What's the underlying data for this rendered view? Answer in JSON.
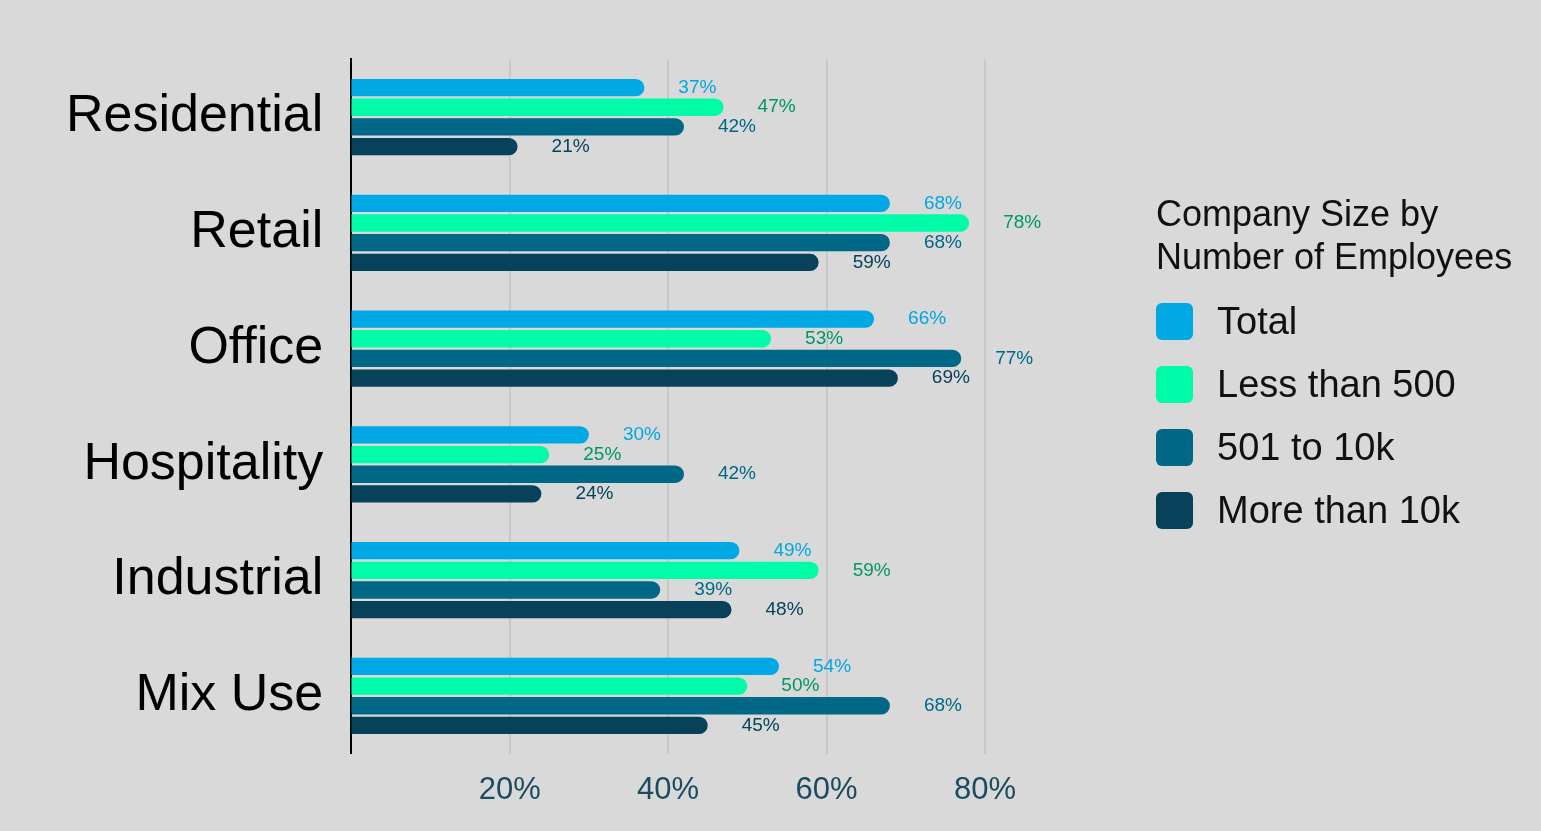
{
  "chart_data": {
    "type": "bar",
    "orientation": "horizontal",
    "legend_title": "Company Size by Number of Employees",
    "legend": "right",
    "grid": "x",
    "categories": [
      "Residential",
      "Retail",
      "Office",
      "Hospitality",
      "Industrial",
      "Mix Use"
    ],
    "xlim": [
      0,
      80
    ],
    "xticks": [
      {
        "value": 20,
        "label": "20%"
      },
      {
        "value": 40,
        "label": "40%"
      },
      {
        "value": 60,
        "label": "60%"
      },
      {
        "value": 80,
        "label": "80%"
      }
    ],
    "series": [
      {
        "name": "Total",
        "color": "#00a8e4",
        "values": [
          37,
          68,
          66,
          30,
          49,
          54
        ],
        "value_labels": [
          "37%",
          "68%",
          "66%",
          "30%",
          "49%",
          "54%"
        ]
      },
      {
        "name": "Less than 500",
        "color": "#00fca8",
        "values": [
          47,
          78,
          53,
          25,
          59,
          50
        ],
        "value_labels": [
          "47%",
          "78%",
          "53%",
          "25%",
          "59%",
          "50%"
        ]
      },
      {
        "name": "501 to 10k",
        "color": "#006886",
        "values": [
          42,
          68,
          77,
          42,
          39,
          68
        ],
        "value_labels": [
          "42%",
          "68%",
          "77%",
          "42%",
          "39%",
          "68%"
        ]
      },
      {
        "name": "More than 10k",
        "color": "#07425a",
        "values": [
          21,
          59,
          69,
          24,
          48,
          45
        ],
        "value_labels": [
          "21%",
          "59%",
          "69%",
          "24%",
          "48%",
          "45%"
        ]
      }
    ]
  }
}
